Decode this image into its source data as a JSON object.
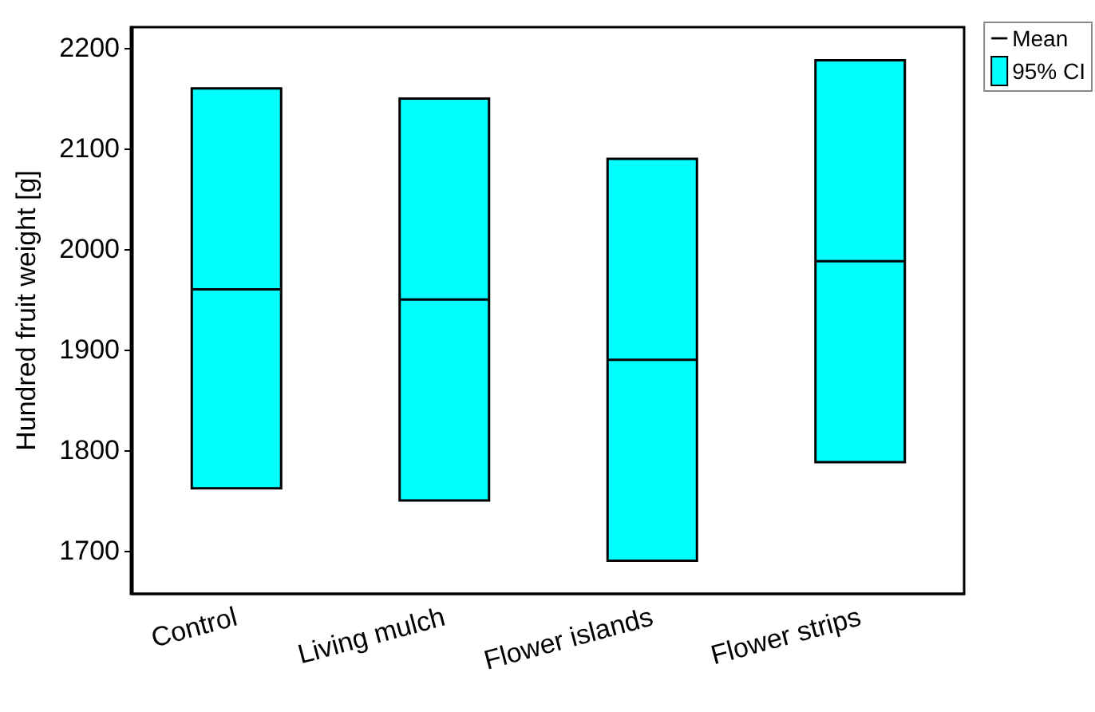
{
  "chart_data": {
    "type": "box",
    "ylabel": "Hundred fruit weight [g]",
    "categories": [
      "Control",
      "Living mulch",
      "Flower islands",
      "Flower strips"
    ],
    "series": [
      {
        "name": "95% CI",
        "color": "#00ffff",
        "boxes": [
          {
            "low": 1762,
            "q1": 1762,
            "median": 1960,
            "q3": 2160,
            "high": 2160
          },
          {
            "low": 1750,
            "q1": 1750,
            "median": 1950,
            "q3": 2150,
            "high": 2150
          },
          {
            "low": 1690,
            "q1": 1690,
            "median": 1890,
            "q3": 2090,
            "high": 2090
          },
          {
            "low": 1788,
            "q1": 1788,
            "median": 1988,
            "q3": 2188,
            "high": 2188
          }
        ]
      }
    ],
    "annotations": [
      "Mean"
    ],
    "ylim": [
      1657,
      2221
    ],
    "yticks": [
      1700,
      1800,
      1900,
      2000,
      2100,
      2200
    ],
    "legend": "top right"
  }
}
